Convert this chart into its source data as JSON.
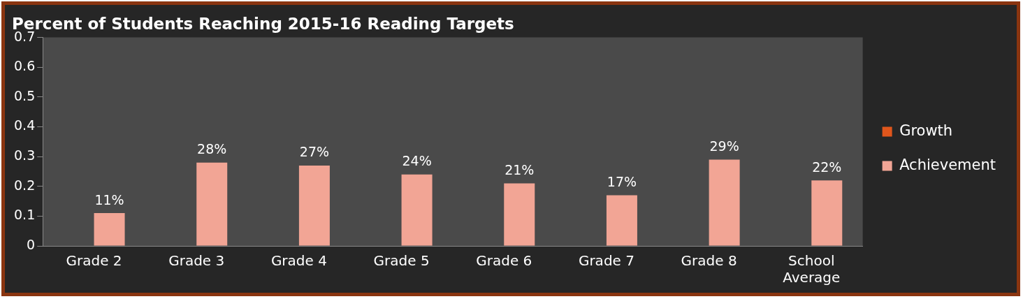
{
  "chart_data": {
    "type": "bar",
    "title": "Percent of Students Reaching 2015-16 Reading Targets",
    "categories": [
      "Grade 2",
      "Grade 3",
      "Grade 4",
      "Grade 5",
      "Grade 6",
      "Grade 7",
      "Grade 8",
      [
        "School",
        "Average"
      ]
    ],
    "series": [
      {
        "name": "Growth",
        "color": "#e0561c",
        "values": [
          null,
          null,
          null,
          null,
          null,
          null,
          null,
          null
        ]
      },
      {
        "name": "Achievement",
        "color": "#f2a595",
        "values": [
          0.11,
          0.28,
          0.27,
          0.24,
          0.21,
          0.17,
          0.29,
          0.22
        ],
        "value_labels": [
          "11%",
          "28%",
          "27%",
          "24%",
          "21%",
          "17%",
          "29%",
          "22%"
        ]
      }
    ],
    "ylim": [
      0,
      0.7
    ],
    "yticks": [
      0,
      0.1,
      0.2,
      0.3,
      0.4,
      0.5,
      0.6,
      0.7
    ],
    "grid": false,
    "legend": "right"
  }
}
